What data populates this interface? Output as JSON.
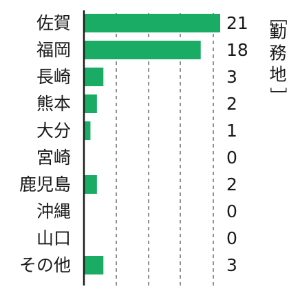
{
  "chart_data": {
    "type": "bar",
    "orientation": "horizontal",
    "title": "［勤務地］",
    "categories": [
      "佐賀",
      "福岡",
      "長崎",
      "熊本",
      "大分",
      "宮崎",
      "鹿児島",
      "沖縄",
      "山口",
      "その他"
    ],
    "values": [
      21,
      18,
      3,
      2,
      1,
      0,
      2,
      0,
      0,
      3
    ],
    "xlim": [
      0,
      21
    ],
    "grid": "vertical-dashed",
    "bar_color": "#1aab64",
    "axis_color": "#1a1a1a",
    "grid_color": "#555555"
  }
}
